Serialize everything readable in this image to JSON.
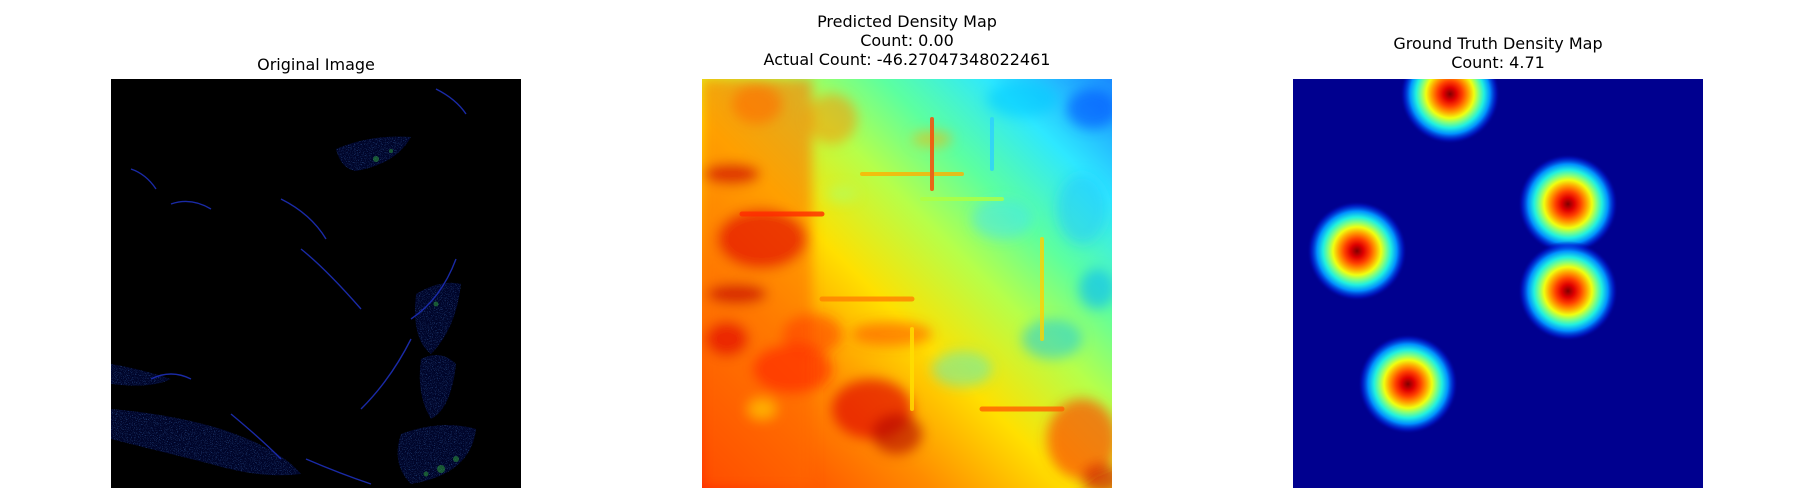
{
  "panels": [
    {
      "title_lines": [
        "Original Image"
      ]
    },
    {
      "title_lines": [
        "Predicted Density Map",
        "Count: 0.00",
        "Actual Count: -46.27047348022461"
      ]
    },
    {
      "title_lines": [
        "Ground Truth Density Map",
        "Count: 4.71"
      ]
    }
  ]
}
